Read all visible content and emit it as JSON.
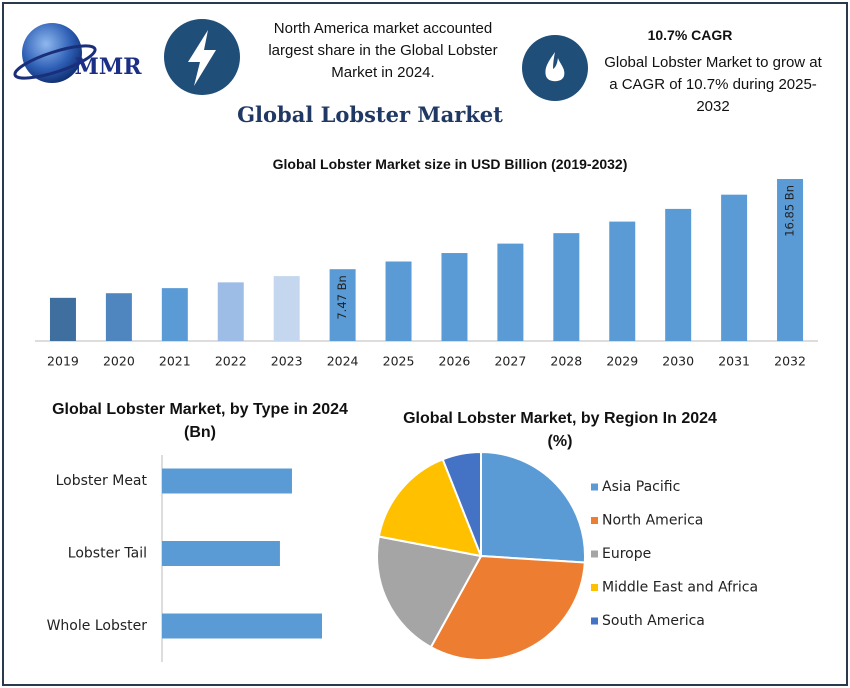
{
  "header": {
    "logo": "MMR",
    "blurb_left": "North America market accounted largest share in the Global Lobster Market in 2024.",
    "cagr_title": "10.7% CAGR",
    "blurb_right": "Global Lobster Market to grow at a CAGR of 10.7% during 2025-2032",
    "title": "Global Lobster Market"
  },
  "chart_data": [
    {
      "type": "bar",
      "title": "Global Lobster Market size in USD Billion (2019-2032)",
      "categories": [
        "2019",
        "2020",
        "2021",
        "2022",
        "2023",
        "2024",
        "2025",
        "2026",
        "2027",
        "2028",
        "2029",
        "2030",
        "2031",
        "2032"
      ],
      "values": [
        4.49,
        4.97,
        5.5,
        6.1,
        6.75,
        7.47,
        8.27,
        9.15,
        10.13,
        11.22,
        12.42,
        13.74,
        15.22,
        16.85
      ],
      "value_labels": [
        null,
        null,
        null,
        null,
        null,
        "7.47 Bn",
        null,
        null,
        null,
        null,
        null,
        null,
        null,
        "16.85 Bn"
      ],
      "colors": [
        "#3f6f9e",
        "#4f86bf",
        "#5b9bd5",
        "#9dbde6",
        "#c5d7ef",
        "#5b9bd5",
        "#5b9bd5",
        "#5b9bd5",
        "#5b9bd5",
        "#5b9bd5",
        "#5b9bd5",
        "#5b9bd5",
        "#5b9bd5",
        "#5b9bd5"
      ]
    },
    {
      "type": "hbar",
      "title": "Global Lobster Market, by Type in 2024 (Bn)",
      "categories": [
        "Lobster Meat",
        "Lobster Tail",
        "Whole Lobster"
      ],
      "values": [
        2.38,
        2.16,
        2.93
      ],
      "color": "#5b9bd5"
    },
    {
      "type": "pie",
      "title": "Global Lobster Market, by Region In 2024 (%)",
      "categories": [
        "Asia Pacific",
        "North America",
        "Europe",
        "Middle East and Africa",
        "South America"
      ],
      "values": [
        26,
        32,
        20,
        16,
        6
      ],
      "colors": [
        "#5b9bd5",
        "#ed7d31",
        "#a5a5a5",
        "#ffc000",
        "#4472c4"
      ],
      "legend": "right"
    }
  ]
}
